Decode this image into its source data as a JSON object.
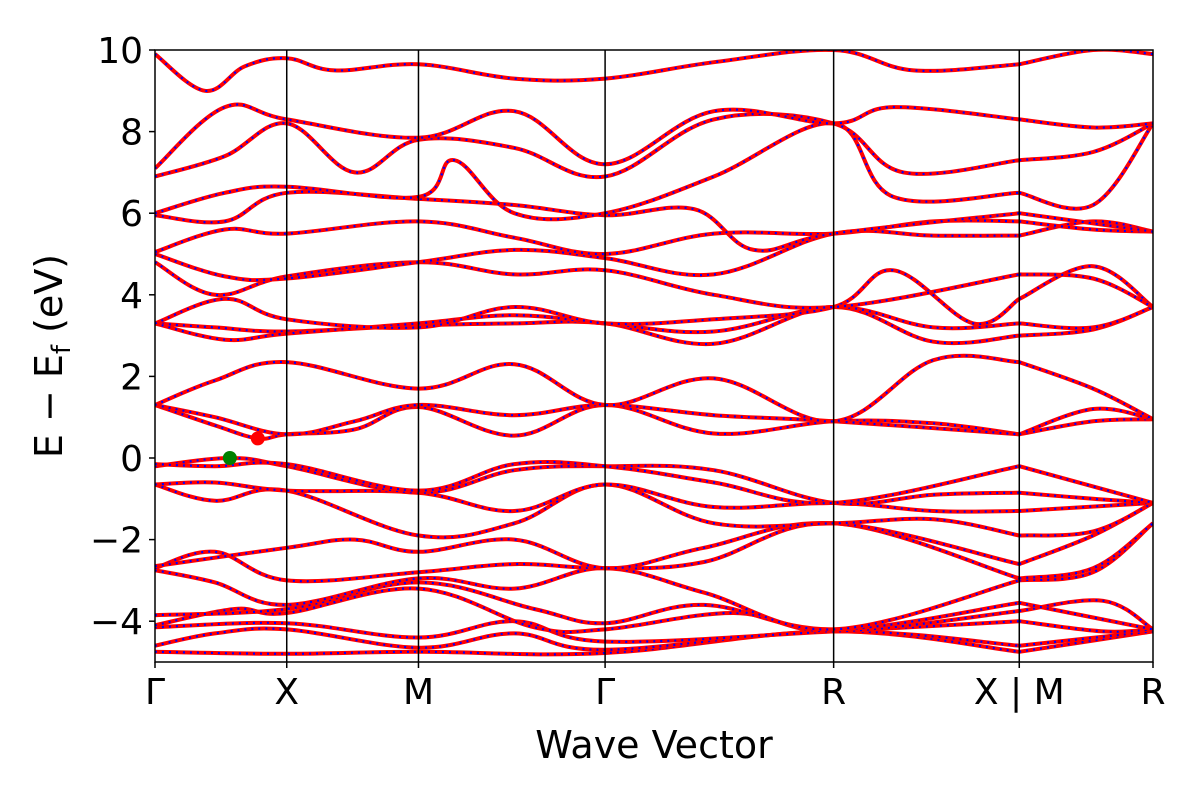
{
  "chart_data": {
    "type": "line",
    "title": "",
    "xlabel": "Wave Vector",
    "ylabel": "E − E",
    "ylabel_sub": "f",
    "ylabel_unit": " (eV)",
    "ylim": [
      -5,
      10
    ],
    "yticks": [
      10,
      8,
      6,
      4,
      2,
      0,
      -2,
      -4
    ],
    "ytick_labels": [
      "10",
      "8",
      "6",
      "4",
      "2",
      "0",
      "−2",
      "−4"
    ],
    "x_range": [
      0,
      1
    ],
    "kpoints": [
      {
        "label": "Γ",
        "x": 0.0
      },
      {
        "label": "X",
        "x": 0.132
      },
      {
        "label": "M",
        "x": 0.264
      },
      {
        "label": "Γ",
        "x": 0.451
      },
      {
        "label": "R",
        "x": 0.68
      },
      {
        "label": "X | M",
        "x": 0.866
      },
      {
        "label": "R",
        "x": 1.0
      }
    ],
    "segment_breaks": [
      0.866
    ],
    "grid": false,
    "series": [
      {
        "style": "solid",
        "color": "#ff0000"
      },
      {
        "style": "dotted",
        "color": "#0000ff"
      }
    ],
    "markers": [
      {
        "x": 0.075,
        "y": 0.0,
        "color": "#008000"
      },
      {
        "x": 0.103,
        "y": 0.48,
        "color": "#ff0000"
      }
    ],
    "bands": [
      [
        [
          0,
          -4.75
        ],
        [
          0.132,
          -4.8
        ],
        [
          0.264,
          -4.75
        ],
        [
          0.451,
          -4.78
        ],
        [
          0.68,
          -4.25
        ],
        [
          0.866,
          -4.75
        ],
        [
          1.0,
          -4.25
        ]
      ],
      [
        [
          0,
          -4.6
        ],
        [
          0.06,
          -4.3
        ],
        [
          0.132,
          -4.2
        ],
        [
          0.264,
          -4.65
        ],
        [
          0.36,
          -4.3
        ],
        [
          0.451,
          -4.7
        ],
        [
          0.68,
          -4.25
        ],
        [
          0.866,
          -4.6
        ],
        [
          1.0,
          -4.25
        ]
      ],
      [
        [
          0,
          -4.15
        ],
        [
          0.132,
          -4.05
        ],
        [
          0.264,
          -4.4
        ],
        [
          0.36,
          -4.0
        ],
        [
          0.451,
          -4.5
        ],
        [
          0.68,
          -4.25
        ],
        [
          0.866,
          -4.0
        ],
        [
          0.95,
          -4.25
        ],
        [
          1.0,
          -4.2
        ]
      ],
      [
        [
          0,
          -4.1
        ],
        [
          0.08,
          -3.7
        ],
        [
          0.132,
          -3.8
        ],
        [
          0.264,
          -3.2
        ],
        [
          0.38,
          -4.15
        ],
        [
          0.451,
          -4.2
        ],
        [
          0.58,
          -3.8
        ],
        [
          0.68,
          -4.25
        ],
        [
          0.866,
          -3.75
        ],
        [
          0.95,
          -3.5
        ],
        [
          1.0,
          -4.2
        ]
      ],
      [
        [
          0,
          -3.85
        ],
        [
          0.132,
          -3.7
        ],
        [
          0.264,
          -3.05
        ],
        [
          0.38,
          -3.7
        ],
        [
          0.451,
          -4.05
        ],
        [
          0.55,
          -3.6
        ],
        [
          0.68,
          -4.2
        ],
        [
          0.866,
          -3.55
        ],
        [
          1.0,
          -4.2
        ]
      ],
      [
        [
          0,
          -2.75
        ],
        [
          0.06,
          -3.05
        ],
        [
          0.132,
          -3.6
        ],
        [
          0.264,
          -2.95
        ],
        [
          0.36,
          -3.2
        ],
        [
          0.451,
          -2.7
        ],
        [
          0.55,
          -3.3
        ],
        [
          0.68,
          -4.2
        ],
        [
          0.866,
          -3.0
        ],
        [
          0.94,
          -2.8
        ],
        [
          1.0,
          -1.6
        ]
      ],
      [
        [
          0,
          -2.7
        ],
        [
          0.06,
          -2.3
        ],
        [
          0.132,
          -3.0
        ],
        [
          0.264,
          -2.8
        ],
        [
          0.36,
          -2.6
        ],
        [
          0.451,
          -2.7
        ],
        [
          0.55,
          -2.55
        ],
        [
          0.68,
          -1.6
        ],
        [
          0.866,
          -2.95
        ],
        [
          0.94,
          -2.7
        ],
        [
          1.0,
          -1.6
        ]
      ],
      [
        [
          0,
          -2.65
        ],
        [
          0.132,
          -2.2
        ],
        [
          0.2,
          -2.0
        ],
        [
          0.264,
          -2.3
        ],
        [
          0.36,
          -2.0
        ],
        [
          0.451,
          -2.7
        ],
        [
          0.55,
          -2.2
        ],
        [
          0.68,
          -1.6
        ],
        [
          0.866,
          -2.6
        ],
        [
          0.94,
          -1.9
        ],
        [
          1.0,
          -1.1
        ]
      ],
      [
        [
          0,
          -0.65
        ],
        [
          0.06,
          -1.05
        ],
        [
          0.132,
          -0.8
        ],
        [
          0.264,
          -1.9
        ],
        [
          0.36,
          -1.6
        ],
        [
          0.451,
          -0.65
        ],
        [
          0.56,
          -1.6
        ],
        [
          0.68,
          -1.6
        ],
        [
          0.78,
          -1.5
        ],
        [
          0.866,
          -1.9
        ],
        [
          0.94,
          -1.8
        ],
        [
          1.0,
          -1.1
        ]
      ],
      [
        [
          0,
          -0.65
        ],
        [
          0.06,
          -0.6
        ],
        [
          0.132,
          -0.8
        ],
        [
          0.264,
          -0.85
        ],
        [
          0.36,
          -1.3
        ],
        [
          0.451,
          -0.65
        ],
        [
          0.56,
          -1.2
        ],
        [
          0.68,
          -1.1
        ],
        [
          0.78,
          -1.3
        ],
        [
          0.866,
          -1.3
        ],
        [
          1.0,
          -1.1
        ]
      ],
      [
        [
          0,
          -0.2
        ],
        [
          0.075,
          0.0
        ],
        [
          0.132,
          -0.2
        ],
        [
          0.264,
          -0.85
        ],
        [
          0.36,
          -0.3
        ],
        [
          0.451,
          -0.2
        ],
        [
          0.56,
          -0.3
        ],
        [
          0.68,
          -1.1
        ],
        [
          0.78,
          -0.9
        ],
        [
          0.866,
          -0.85
        ],
        [
          0.94,
          -1.0
        ],
        [
          1.0,
          -1.1
        ]
      ],
      [
        [
          0,
          -0.15
        ],
        [
          0.06,
          -0.2
        ],
        [
          0.132,
          -0.15
        ],
        [
          0.264,
          -0.8
        ],
        [
          0.36,
          -0.15
        ],
        [
          0.451,
          -0.2
        ],
        [
          0.56,
          -0.6
        ],
        [
          0.68,
          -1.1
        ],
        [
          0.866,
          -0.2
        ],
        [
          1.0,
          -1.1
        ]
      ],
      [
        [
          0,
          1.3
        ],
        [
          0.06,
          0.8
        ],
        [
          0.103,
          0.48
        ],
        [
          0.132,
          0.58
        ],
        [
          0.2,
          0.7
        ],
        [
          0.264,
          1.25
        ],
        [
          0.36,
          0.55
        ],
        [
          0.451,
          1.3
        ],
        [
          0.56,
          0.6
        ],
        [
          0.68,
          0.9
        ],
        [
          0.78,
          0.85
        ],
        [
          0.866,
          0.58
        ],
        [
          0.94,
          0.9
        ],
        [
          1.0,
          0.95
        ]
      ],
      [
        [
          0,
          1.3
        ],
        [
          0.06,
          1.0
        ],
        [
          0.132,
          0.58
        ],
        [
          0.2,
          0.9
        ],
        [
          0.264,
          1.3
        ],
        [
          0.36,
          1.05
        ],
        [
          0.451,
          1.3
        ],
        [
          0.56,
          1.05
        ],
        [
          0.68,
          0.9
        ],
        [
          0.866,
          0.58
        ],
        [
          0.94,
          1.2
        ],
        [
          1.0,
          0.95
        ]
      ],
      [
        [
          0,
          1.3
        ],
        [
          0.06,
          1.9
        ],
        [
          0.132,
          2.35
        ],
        [
          0.264,
          1.7
        ],
        [
          0.36,
          2.3
        ],
        [
          0.451,
          1.3
        ],
        [
          0.56,
          1.95
        ],
        [
          0.68,
          0.9
        ],
        [
          0.78,
          2.4
        ],
        [
          0.866,
          2.35
        ],
        [
          0.94,
          1.7
        ],
        [
          1.0,
          0.95
        ]
      ],
      [
        [
          0,
          3.3
        ],
        [
          0.06,
          3.2
        ],
        [
          0.132,
          3.1
        ],
        [
          0.264,
          3.25
        ],
        [
          0.36,
          3.3
        ],
        [
          0.451,
          3.3
        ],
        [
          0.56,
          2.8
        ],
        [
          0.68,
          3.7
        ],
        [
          0.78,
          2.85
        ],
        [
          0.866,
          3.0
        ],
        [
          0.94,
          3.15
        ],
        [
          1.0,
          3.7
        ]
      ],
      [
        [
          0,
          3.3
        ],
        [
          0.07,
          2.9
        ],
        [
          0.132,
          3.05
        ],
        [
          0.264,
          3.3
        ],
        [
          0.36,
          3.5
        ],
        [
          0.451,
          3.3
        ],
        [
          0.56,
          3.1
        ],
        [
          0.68,
          3.7
        ],
        [
          0.78,
          3.2
        ],
        [
          0.866,
          3.3
        ],
        [
          0.94,
          3.2
        ],
        [
          1.0,
          3.7
        ]
      ],
      [
        [
          0,
          3.3
        ],
        [
          0.07,
          3.9
        ],
        [
          0.132,
          3.4
        ],
        [
          0.264,
          3.2
        ],
        [
          0.36,
          3.7
        ],
        [
          0.451,
          3.3
        ],
        [
          0.56,
          3.4
        ],
        [
          0.68,
          3.7
        ],
        [
          0.74,
          4.6
        ],
        [
          0.82,
          3.3
        ],
        [
          0.866,
          3.9
        ],
        [
          0.94,
          4.7
        ],
        [
          1.0,
          3.7
        ]
      ],
      [
        [
          0,
          4.8
        ],
        [
          0.06,
          4.0
        ],
        [
          0.132,
          4.45
        ],
        [
          0.264,
          4.8
        ],
        [
          0.36,
          4.5
        ],
        [
          0.451,
          4.6
        ],
        [
          0.56,
          4.0
        ],
        [
          0.68,
          3.7
        ],
        [
          0.866,
          4.5
        ],
        [
          0.94,
          4.4
        ],
        [
          1.0,
          3.7
        ]
      ],
      [
        [
          0,
          5.0
        ],
        [
          0.07,
          4.45
        ],
        [
          0.132,
          4.4
        ],
        [
          0.264,
          4.8
        ],
        [
          0.36,
          5.1
        ],
        [
          0.451,
          4.9
        ],
        [
          0.56,
          4.5
        ],
        [
          0.68,
          5.5
        ],
        [
          0.78,
          5.45
        ],
        [
          0.866,
          5.45
        ],
        [
          0.94,
          5.8
        ],
        [
          1.0,
          5.55
        ]
      ],
      [
        [
          0,
          5.05
        ],
        [
          0.07,
          5.6
        ],
        [
          0.132,
          5.5
        ],
        [
          0.264,
          5.8
        ],
        [
          0.36,
          5.4
        ],
        [
          0.451,
          5.0
        ],
        [
          0.56,
          5.5
        ],
        [
          0.68,
          5.5
        ],
        [
          0.78,
          5.8
        ],
        [
          0.866,
          5.8
        ],
        [
          0.94,
          5.6
        ],
        [
          1.0,
          5.55
        ]
      ],
      [
        [
          0,
          5.95
        ],
        [
          0.07,
          5.8
        ],
        [
          0.132,
          6.5
        ],
        [
          0.264,
          6.35
        ],
        [
          0.36,
          6.2
        ],
        [
          0.451,
          5.95
        ],
        [
          0.54,
          6.1
        ],
        [
          0.6,
          5.1
        ],
        [
          0.68,
          5.5
        ],
        [
          0.866,
          6.0
        ],
        [
          1.0,
          5.55
        ]
      ],
      [
        [
          0,
          6.0
        ],
        [
          0.07,
          6.5
        ],
        [
          0.132,
          6.65
        ],
        [
          0.264,
          6.4
        ],
        [
          0.3,
          7.3
        ],
        [
          0.36,
          6.0
        ],
        [
          0.451,
          6.0
        ],
        [
          0.56,
          6.9
        ],
        [
          0.68,
          8.2
        ],
        [
          0.74,
          6.4
        ],
        [
          0.866,
          6.5
        ],
        [
          0.94,
          6.2
        ],
        [
          1.0,
          8.2
        ]
      ],
      [
        [
          0,
          6.9
        ],
        [
          0.07,
          7.4
        ],
        [
          0.132,
          8.2
        ],
        [
          0.2,
          7.0
        ],
        [
          0.264,
          7.8
        ],
        [
          0.36,
          7.6
        ],
        [
          0.451,
          6.9
        ],
        [
          0.56,
          8.3
        ],
        [
          0.68,
          8.2
        ],
        [
          0.75,
          7.0
        ],
        [
          0.866,
          7.3
        ],
        [
          0.94,
          7.5
        ],
        [
          1.0,
          8.2
        ]
      ],
      [
        [
          0,
          7.1
        ],
        [
          0.07,
          8.6
        ],
        [
          0.132,
          8.3
        ],
        [
          0.264,
          7.85
        ],
        [
          0.36,
          8.5
        ],
        [
          0.451,
          7.2
        ],
        [
          0.56,
          8.5
        ],
        [
          0.68,
          8.2
        ],
        [
          0.74,
          8.6
        ],
        [
          0.866,
          8.3
        ],
        [
          0.94,
          8.1
        ],
        [
          1.0,
          8.2
        ]
      ],
      [
        [
          0,
          9.9
        ],
        [
          0.05,
          9.0
        ],
        [
          0.09,
          9.6
        ],
        [
          0.132,
          9.8
        ],
        [
          0.18,
          9.5
        ],
        [
          0.264,
          9.65
        ],
        [
          0.36,
          9.3
        ],
        [
          0.451,
          9.3
        ],
        [
          0.56,
          9.7
        ],
        [
          0.68,
          10.0
        ],
        [
          0.76,
          9.5
        ],
        [
          0.866,
          9.65
        ],
        [
          0.94,
          10.0
        ],
        [
          1.0,
          9.9
        ]
      ]
    ]
  }
}
